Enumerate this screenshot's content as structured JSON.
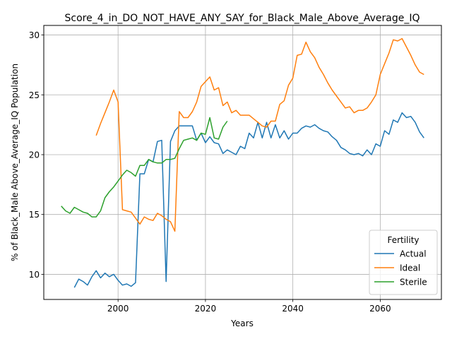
{
  "chart_data": {
    "type": "line",
    "title": "Score_4_in_DO_NOT_HAVE_ANY_SAY_for_Black_Male_Above_Average_IQ",
    "xlabel": "Years",
    "ylabel": "% of Black_Male Above_Average_IQ Population",
    "xlim": [
      1983,
      2074
    ],
    "ylim": [
      7.9,
      30.8
    ],
    "xticks": [
      2000,
      2020,
      2040,
      2060
    ],
    "yticks": [
      10,
      15,
      20,
      25,
      30
    ],
    "grid": true,
    "legend": {
      "title": "Fertility",
      "position": "lower-right"
    },
    "series": [
      {
        "name": "Actual",
        "color": "#1f77b4",
        "x": [
          1990,
          1991,
          1992,
          1993,
          1994,
          1995,
          1996,
          1997,
          1998,
          1999,
          2000,
          2001,
          2002,
          2003,
          2004,
          2005,
          2006,
          2007,
          2008,
          2009,
          2010,
          2011,
          2012,
          2013,
          2014,
          2015,
          2016,
          2017,
          2018,
          2019,
          2020,
          2021,
          2022,
          2023,
          2024,
          2025,
          2026,
          2027,
          2028,
          2029,
          2030,
          2031,
          2032,
          2033,
          2034,
          2035,
          2036,
          2037,
          2038,
          2039,
          2040,
          2041,
          2042,
          2043,
          2044,
          2045,
          2046,
          2047,
          2048,
          2049,
          2050,
          2051,
          2052,
          2053,
          2054,
          2055,
          2056,
          2057,
          2058,
          2059,
          2060,
          2061,
          2062,
          2063,
          2064,
          2065,
          2066,
          2067,
          2068,
          2069,
          2070
        ],
        "y": [
          8.9,
          9.6,
          9.4,
          9.1,
          9.8,
          10.3,
          9.7,
          10.1,
          9.8,
          10.0,
          9.5,
          9.1,
          9.2,
          9.0,
          9.3,
          18.4,
          18.4,
          19.6,
          19.4,
          21.1,
          21.2,
          9.4,
          21.1,
          22.0,
          22.4,
          22.4,
          22.4,
          22.4,
          21.2,
          21.8,
          21.0,
          21.5,
          21.0,
          20.9,
          20.1,
          20.4,
          20.2,
          20.0,
          20.7,
          20.5,
          21.8,
          21.4,
          22.7,
          21.4,
          22.7,
          21.4,
          22.5,
          21.4,
          22.0,
          21.3,
          21.8,
          21.8,
          22.2,
          22.4,
          22.3,
          22.5,
          22.2,
          22.0,
          21.9,
          21.5,
          21.2,
          20.6,
          20.4,
          20.1,
          20.0,
          20.1,
          19.9,
          20.4,
          20.0,
          20.9,
          20.7,
          22.0,
          21.7,
          22.9,
          22.7,
          23.5,
          23.1,
          23.2,
          22.7,
          21.9,
          21.4
        ]
      },
      {
        "name": "Ideal",
        "color": "#ff7f0e",
        "x": [
          1995,
          1996,
          1997,
          1998,
          1999,
          2000,
          2001,
          2002,
          2003,
          2004,
          2005,
          2006,
          2007,
          2008,
          2009,
          2010,
          2011,
          2012,
          2013,
          2014,
          2015,
          2016,
          2017,
          2018,
          2019,
          2020,
          2021,
          2022,
          2023,
          2024,
          2025,
          2026,
          2027,
          2028,
          2029,
          2030,
          2031,
          2032,
          2033,
          2034,
          2035,
          2036,
          2037,
          2038,
          2039,
          2040,
          2041,
          2042,
          2043,
          2044,
          2045,
          2046,
          2047,
          2048,
          2049,
          2050,
          2051,
          2052,
          2053,
          2054,
          2055,
          2056,
          2057,
          2058,
          2059,
          2060,
          2061,
          2062,
          2063,
          2064,
          2065,
          2066,
          2067,
          2068,
          2069,
          2070
        ],
        "y": [
          21.6,
          22.6,
          23.5,
          24.4,
          25.4,
          24.4,
          15.4,
          15.3,
          15.2,
          14.7,
          14.2,
          14.8,
          14.6,
          14.5,
          15.1,
          14.9,
          14.6,
          14.4,
          13.6,
          23.6,
          23.1,
          23.1,
          23.6,
          24.4,
          25.7,
          26.1,
          26.5,
          25.4,
          25.6,
          24.1,
          24.4,
          23.5,
          23.7,
          23.3,
          23.3,
          23.3,
          23.0,
          22.7,
          22.4,
          22.3,
          22.8,
          22.8,
          24.2,
          24.5,
          25.8,
          26.4,
          28.3,
          28.4,
          29.4,
          28.6,
          28.1,
          27.3,
          26.7,
          26.0,
          25.4,
          24.9,
          24.4,
          23.9,
          24.0,
          23.5,
          23.7,
          23.7,
          23.9,
          24.4,
          25.0,
          26.7,
          27.6,
          28.5,
          29.6,
          29.5,
          29.7,
          29.0,
          28.3,
          27.5,
          26.9,
          26.7
        ]
      },
      {
        "name": "Sterile",
        "color": "#2ca02c",
        "x": [
          1987,
          1988,
          1989,
          1990,
          1991,
          1992,
          1993,
          1994,
          1995,
          1996,
          1997,
          1998,
          1999,
          2000,
          2001,
          2002,
          2003,
          2004,
          2005,
          2006,
          2007,
          2008,
          2009,
          2010,
          2011,
          2012,
          2013,
          2014,
          2015,
          2016,
          2017,
          2018,
          2019,
          2020,
          2021,
          2022,
          2023,
          2024,
          2025
        ],
        "y": [
          15.7,
          15.3,
          15.1,
          15.6,
          15.4,
          15.2,
          15.1,
          14.8,
          14.8,
          15.3,
          16.4,
          16.9,
          17.3,
          17.8,
          18.3,
          18.7,
          18.5,
          18.2,
          19.1,
          19.1,
          19.6,
          19.4,
          19.3,
          19.3,
          19.6,
          19.6,
          19.7,
          20.5,
          21.2,
          21.3,
          21.4,
          21.2,
          21.8,
          21.7,
          23.1,
          21.4,
          21.3,
          22.3,
          22.8
        ]
      }
    ]
  }
}
